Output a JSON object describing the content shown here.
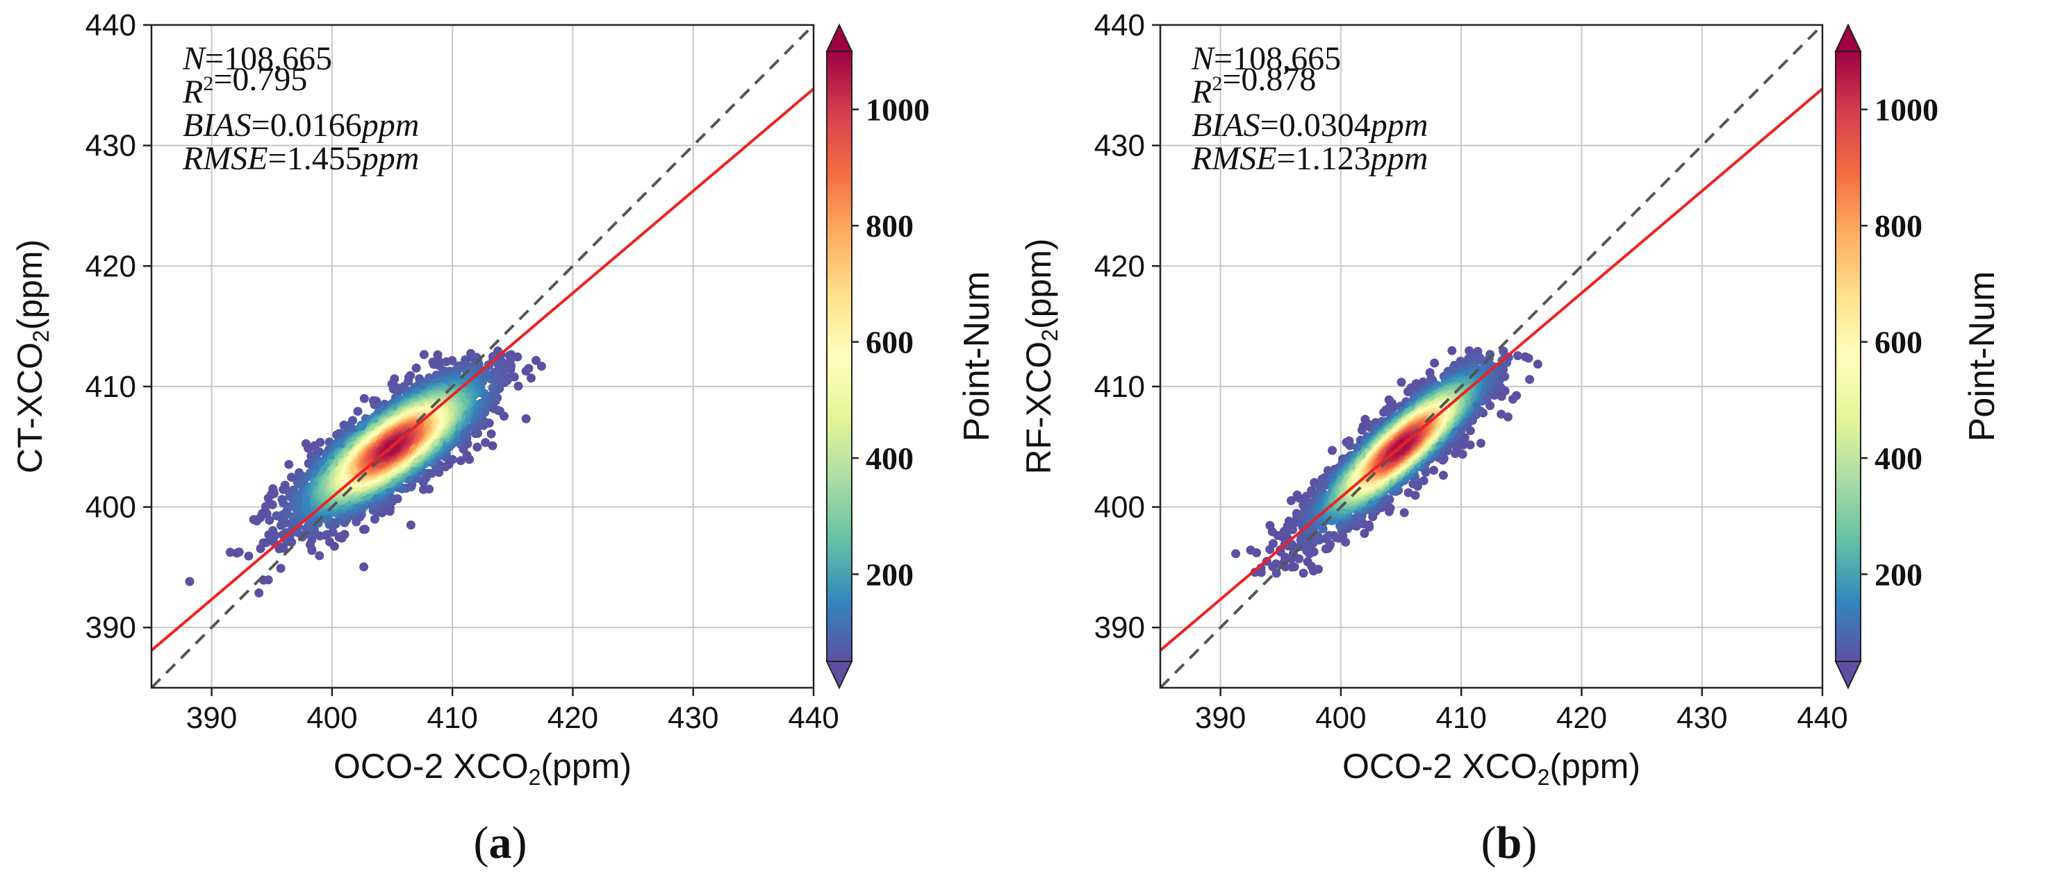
{
  "chart_data": [
    {
      "type": "scatter",
      "panel_label": "a",
      "xlabel": {
        "prefix": "OCO-2 XCO",
        "sub": "2",
        "suffix": "(ppm)"
      },
      "ylabel": {
        "prefix": "CT-XCO",
        "sub": "2",
        "suffix": "(ppm)"
      },
      "xlim": [
        385,
        440
      ],
      "ylim": [
        385,
        440
      ],
      "xticks": [
        390,
        400,
        410,
        420,
        430,
        440
      ],
      "yticks": [
        390,
        400,
        410,
        420,
        430,
        440
      ],
      "grid": true,
      "stats": {
        "n": {
          "name": "N",
          "value": "108,665"
        },
        "r2": {
          "name": "R",
          "sup": "2",
          "value": "0.795"
        },
        "bias": {
          "name": "BIAS",
          "value": "0.0166",
          "unit": "ppm"
        },
        "rmse": {
          "name": "RMSE",
          "value": "1.455",
          "unit": "ppm"
        }
      },
      "one_to_one_line": {
        "color": "#555555",
        "style": "dashed"
      },
      "fit_line": {
        "color": "#ee2222",
        "x": [
          385,
          440
        ],
        "y": [
          388.1,
          434.7
        ]
      },
      "density_cloud": {
        "center": [
          405,
          405
        ],
        "slope": 0.72,
        "along_sd": 5.0,
        "perp_sd": 1.6,
        "x_range": [
          388,
          420
        ],
        "y_range": [
          392.5,
          413
        ]
      },
      "colorbar": {
        "label": "Point-Num",
        "range": [
          50,
          1100
        ],
        "ticks": [
          200,
          400,
          600,
          800,
          1000
        ],
        "extend": "both",
        "colormap": "Spectral_r"
      }
    },
    {
      "type": "scatter",
      "panel_label": "b",
      "xlabel": {
        "prefix": "OCO-2 XCO",
        "sub": "2",
        "suffix": "(ppm)"
      },
      "ylabel": {
        "prefix": "RF-XCO",
        "sub": "2",
        "suffix": "(ppm)"
      },
      "xlim": [
        385,
        440
      ],
      "ylim": [
        385,
        440
      ],
      "xticks": [
        390,
        400,
        410,
        420,
        430,
        440
      ],
      "yticks": [
        390,
        400,
        410,
        420,
        430,
        440
      ],
      "grid": true,
      "stats": {
        "n": {
          "name": "N",
          "value": "108,665"
        },
        "r2": {
          "name": "R",
          "sup": "2",
          "value": "0.878"
        },
        "bias": {
          "name": "BIAS",
          "value": "0.0304",
          "unit": "ppm"
        },
        "rmse": {
          "name": "RMSE",
          "value": "1.123",
          "unit": "ppm"
        }
      },
      "one_to_one_line": {
        "color": "#555555",
        "style": "dashed"
      },
      "fit_line": {
        "color": "#ee2222",
        "x": [
          385,
          440
        ],
        "y": [
          388.1,
          434.7
        ]
      },
      "density_cloud": {
        "center": [
          405,
          405
        ],
        "slope": 0.9,
        "along_sd": 5.0,
        "perp_sd": 1.2,
        "x_range": [
          389,
          420
        ],
        "y_range": [
          393,
          413
        ]
      },
      "colorbar": {
        "label": "Point-Num",
        "range": [
          50,
          1100
        ],
        "ticks": [
          200,
          400,
          600,
          800,
          1000
        ],
        "extend": "both",
        "colormap": "Spectral_r"
      }
    }
  ]
}
